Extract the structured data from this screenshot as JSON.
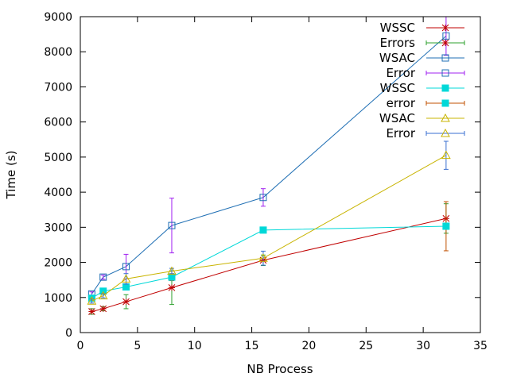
{
  "chart_data": {
    "type": "line",
    "title": "",
    "xlabel": "NB Process",
    "ylabel": "Time (s)",
    "xlim": [
      0,
      35
    ],
    "ylim": [
      0,
      9000
    ],
    "xticks": [
      0,
      5,
      10,
      15,
      20,
      25,
      30,
      35
    ],
    "yticks": [
      0,
      1000,
      2000,
      3000,
      4000,
      5000,
      6000,
      7000,
      8000,
      9000
    ],
    "grid": false,
    "legend_position": "top-right",
    "series": [
      {
        "name": "WSSC",
        "error_name": "Errors",
        "color": "#c00000",
        "error_color": "#2ca02c",
        "marker": "plus",
        "x": [
          1,
          2,
          4,
          8,
          16,
          32
        ],
        "y": [
          600,
          680,
          880,
          1280,
          2060,
          3250
        ],
        "err": [
          80,
          60,
          200,
          480,
          150,
          420
        ]
      },
      {
        "name": "WSAC",
        "error_name": "Error",
        "color": "#1f6fb4",
        "error_color": "#a020f0",
        "marker": "box",
        "x": [
          1,
          2,
          4,
          8,
          16,
          32
        ],
        "y": [
          1100,
          1580,
          1880,
          3050,
          3850,
          8450
        ],
        "err": [
          60,
          60,
          350,
          780,
          250,
          550
        ]
      },
      {
        "name": "WSSC",
        "error_name": "error",
        "color": "#00d8d8",
        "error_color": "#c05000",
        "marker": "filled-square",
        "x": [
          1,
          2,
          4,
          8,
          16,
          32
        ],
        "y": [
          980,
          1180,
          1300,
          1580,
          2920,
          3030
        ],
        "err": [
          60,
          60,
          80,
          100,
          80,
          700
        ]
      },
      {
        "name": "WSAC",
        "error_name": "Error",
        "color": "#c8b400",
        "error_color": "#3a6fd0",
        "marker": "triangle",
        "x": [
          1,
          2,
          4,
          8,
          16,
          32
        ],
        "y": [
          900,
          1050,
          1530,
          1750,
          2120,
          5050
        ],
        "err": [
          60,
          60,
          150,
          80,
          200,
          400
        ]
      }
    ]
  }
}
